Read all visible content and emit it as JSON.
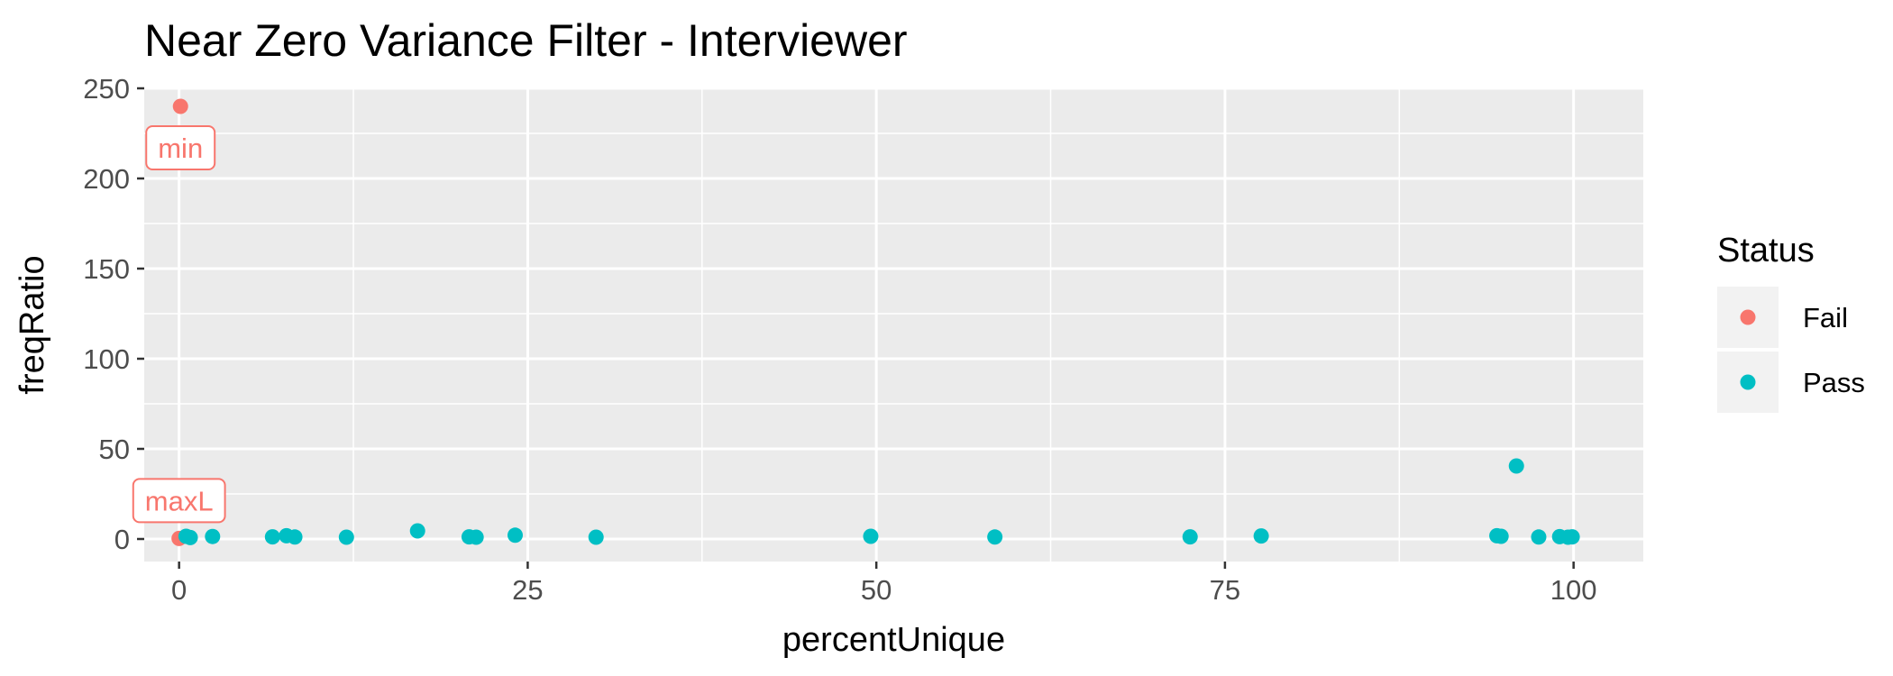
{
  "chart_data": {
    "type": "scatter",
    "title": "Near Zero Variance Filter - Interviewer",
    "xlabel": "percentUnique",
    "ylabel": "freqRatio",
    "xlim": [
      -2.5,
      105
    ],
    "ylim": [
      -12.5,
      250
    ],
    "x_ticks": [
      0,
      25,
      50,
      75,
      100
    ],
    "y_ticks": [
      0,
      50,
      100,
      150,
      200,
      250
    ],
    "grid": true,
    "legend": {
      "title": "Status",
      "position": "right",
      "entries": [
        {
          "label": "Fail",
          "color": "#F8766D"
        },
        {
          "label": "Pass",
          "color": "#00BFC4"
        }
      ]
    },
    "series": [
      {
        "name": "Fail",
        "color": "#F8766D",
        "points": [
          {
            "x": 0.1,
            "y": 240
          },
          {
            "x": 0.0,
            "y": 0.3
          }
        ]
      },
      {
        "name": "Pass",
        "color": "#00BFC4",
        "points": [
          {
            "x": 0.5,
            "y": 1.5
          },
          {
            "x": 0.8,
            "y": 0.8
          },
          {
            "x": 2.4,
            "y": 1.4
          },
          {
            "x": 6.7,
            "y": 1.2
          },
          {
            "x": 7.7,
            "y": 1.8
          },
          {
            "x": 8.3,
            "y": 1.1
          },
          {
            "x": 12.0,
            "y": 1.0
          },
          {
            "x": 17.1,
            "y": 4.5
          },
          {
            "x": 20.8,
            "y": 1.2
          },
          {
            "x": 21.3,
            "y": 1.0
          },
          {
            "x": 24.1,
            "y": 2.1
          },
          {
            "x": 29.9,
            "y": 1.0
          },
          {
            "x": 49.6,
            "y": 1.5
          },
          {
            "x": 58.5,
            "y": 1.1
          },
          {
            "x": 72.5,
            "y": 1.2
          },
          {
            "x": 77.6,
            "y": 1.7
          },
          {
            "x": 94.5,
            "y": 1.8
          },
          {
            "x": 94.8,
            "y": 1.5
          },
          {
            "x": 95.9,
            "y": 40.5
          },
          {
            "x": 97.5,
            "y": 1.1
          },
          {
            "x": 99.0,
            "y": 1.3
          },
          {
            "x": 99.6,
            "y": 1.0
          },
          {
            "x": 99.9,
            "y": 1.2
          }
        ]
      }
    ],
    "annotations": [
      {
        "text": "min",
        "x": 0.1,
        "y": 240,
        "placement": "below",
        "color": "#F8766D"
      },
      {
        "text": "maxL",
        "x": 0.0,
        "y": 0.3,
        "placement": "above",
        "color": "#F8766D"
      }
    ]
  }
}
